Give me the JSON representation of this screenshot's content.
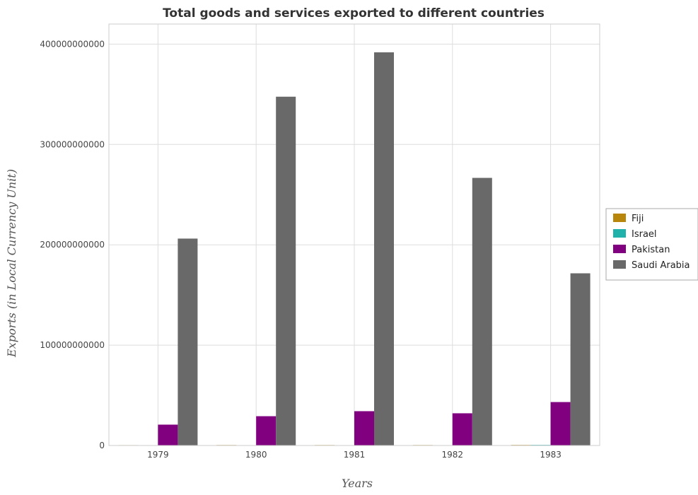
{
  "chart_data": {
    "type": "bar",
    "title": "Total goods and services exported to different countries",
    "xlabel": "Years",
    "ylabel": "Exports (in Local Currency Unit)",
    "categories": [
      "1979",
      "1980",
      "1981",
      "1982",
      "1983"
    ],
    "ylim": [
      0,
      420000000000
    ],
    "yticks": [
      0,
      100000000000,
      200000000000,
      300000000000,
      400000000000
    ],
    "ytick_labels": [
      "0",
      "100000000000",
      "200000000000",
      "300000000000",
      "400000000000"
    ],
    "grid": true,
    "legend_position": "right",
    "series": [
      {
        "name": "Fiji",
        "color": "#b8860b",
        "values": [
          390000000,
          480000000,
          470000000,
          470000000,
          560000000
        ]
      },
      {
        "name": "Israel",
        "color": "#20b2aa",
        "values": [
          5000000,
          10000000,
          20000000,
          40000000,
          600000000
        ]
      },
      {
        "name": "Pakistan",
        "color": "#800080",
        "values": [
          20800000000,
          29200000000,
          34200000000,
          32100000000,
          43300000000
        ]
      },
      {
        "name": "Saudi Arabia",
        "color": "#696969",
        "values": [
          206200000000,
          347600000000,
          391800000000,
          266700000000,
          171600000000
        ]
      }
    ]
  }
}
